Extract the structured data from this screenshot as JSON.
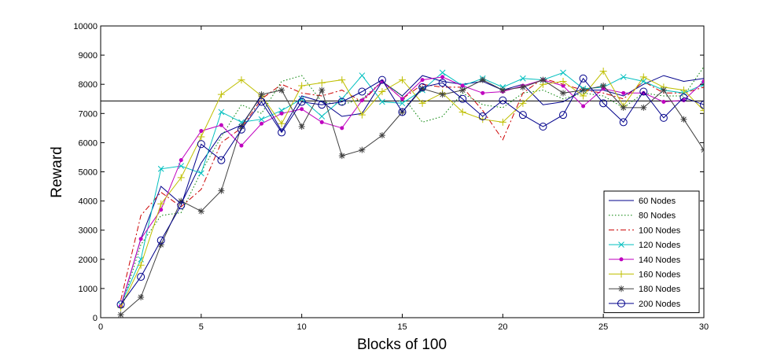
{
  "chart_data": {
    "type": "line",
    "title": "",
    "xlabel": "Blocks of 100",
    "ylabel": "Reward",
    "xlim": [
      0,
      30
    ],
    "ylim": [
      0,
      10000
    ],
    "xticks": [
      0,
      5,
      10,
      15,
      20,
      25,
      30
    ],
    "yticks": [
      0,
      1000,
      2000,
      3000,
      4000,
      5000,
      6000,
      7000,
      8000,
      9000,
      10000
    ],
    "grid": false,
    "legend_position": "bottom-right",
    "reference_line": {
      "y": 7430
    },
    "x": [
      1,
      2,
      3,
      4,
      5,
      6,
      7,
      8,
      9,
      10,
      11,
      12,
      13,
      14,
      15,
      16,
      17,
      18,
      19,
      20,
      21,
      22,
      23,
      24,
      25,
      26,
      27,
      28,
      29,
      30
    ],
    "series": [
      {
        "name": "60 Nodes",
        "color": "#00008B",
        "line_style": "solid",
        "marker": "none",
        "values": [
          400,
          2700,
          4500,
          3900,
          5300,
          6300,
          6600,
          7600,
          6400,
          7600,
          7400,
          6900,
          7000,
          8100,
          7600,
          8300,
          8100,
          8000,
          8100,
          7800,
          8000,
          7300,
          7400,
          7800,
          7800,
          7600,
          8000,
          8300,
          8100,
          8200
        ]
      },
      {
        "name": "80 Nodes",
        "color": "#008000",
        "line_style": "dotted",
        "marker": "none",
        "values": [
          300,
          2500,
          3500,
          3600,
          5000,
          6200,
          7300,
          7000,
          8100,
          8300,
          7400,
          7300,
          7500,
          8100,
          7600,
          6700,
          6900,
          7700,
          7300,
          7200,
          7700,
          7800,
          7500,
          7700,
          7600,
          7200,
          7700,
          7600,
          7600,
          8600
        ]
      },
      {
        "name": "100 Nodes",
        "color": "#CC0000",
        "line_style": "dashdot",
        "marker": "none",
        "values": [
          600,
          3500,
          4300,
          3800,
          4400,
          6000,
          6500,
          7500,
          8000,
          7700,
          7600,
          7800,
          7400,
          8100,
          7500,
          8000,
          7900,
          7900,
          7100,
          6100,
          7700,
          8200,
          8000,
          7800,
          7700,
          7500,
          8100,
          7700,
          7700,
          7900
        ]
      },
      {
        "name": "120 Nodes",
        "color": "#00BFBF",
        "line_style": "solid",
        "marker": "x",
        "values": [
          450,
          2000,
          5100,
          5200,
          4950,
          7050,
          6700,
          6800,
          7100,
          7500,
          6900,
          7500,
          8300,
          7400,
          7350,
          7800,
          8400,
          7950,
          8200,
          7900,
          8200,
          8150,
          8400,
          7850,
          7900,
          8250,
          8100,
          7800,
          7700,
          8000
        ]
      },
      {
        "name": "140 Nodes",
        "color": "#BF00BF",
        "line_style": "solid",
        "marker": "dot",
        "values": [
          400,
          2700,
          3700,
          5400,
          6400,
          6600,
          5900,
          6650,
          7000,
          7150,
          6700,
          6500,
          7450,
          8100,
          7500,
          8150,
          8250,
          7950,
          7700,
          7750,
          7950,
          8150,
          7950,
          7250,
          7850,
          7700,
          7700,
          7400,
          7450,
          8100
        ]
      },
      {
        "name": "160 Nodes",
        "color": "#BFBF00",
        "line_style": "solid",
        "marker": "plus",
        "values": [
          350,
          1800,
          3900,
          4800,
          6200,
          7650,
          8150,
          7600,
          6650,
          7950,
          8050,
          8150,
          6950,
          7750,
          8150,
          7350,
          7700,
          7050,
          6800,
          6700,
          7350,
          8000,
          8100,
          7600,
          8450,
          7250,
          8250,
          7900,
          7800,
          7100
        ]
      },
      {
        "name": "180 Nodes",
        "color": "#404040",
        "line_style": "solid",
        "marker": "star",
        "values": [
          100,
          700,
          2500,
          4000,
          3650,
          4350,
          6550,
          7650,
          7800,
          6550,
          7800,
          5550,
          5750,
          6250,
          7050,
          7850,
          7650,
          7800,
          8150,
          7800,
          7900,
          8150,
          7700,
          7800,
          7950,
          7200,
          7200,
          7800,
          6800,
          5750
        ]
      },
      {
        "name": "200 Nodes",
        "color": "#00008B",
        "line_style": "solid",
        "marker": "circle",
        "values": [
          450,
          1400,
          2650,
          3850,
          5950,
          5400,
          6450,
          7400,
          6350,
          7400,
          7300,
          7400,
          7750,
          8150,
          7050,
          7900,
          8050,
          7500,
          6900,
          7450,
          6950,
          6550,
          6950,
          8200,
          7350,
          6700,
          7750,
          6850,
          7550,
          7300
        ]
      }
    ]
  }
}
